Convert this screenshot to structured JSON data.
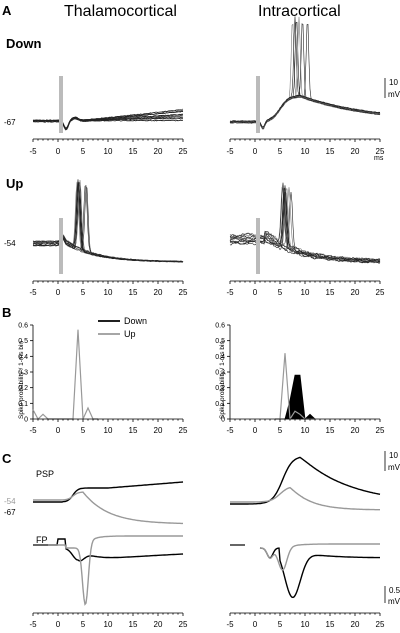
{
  "panels": {
    "A": "A",
    "B": "B",
    "C": "C"
  },
  "titles": {
    "left": "Thalamocortical",
    "right": "Intracortical"
  },
  "conditions": {
    "down": "Down",
    "up": "Up"
  },
  "x_ticks": [
    "-5",
    "0",
    "5",
    "10",
    "15",
    "20",
    "25"
  ],
  "ms_unit": "ms",
  "voltage": {
    "down": "-67",
    "up": "-54"
  },
  "scalebars": {
    "a_value": "10",
    "a_unit": "mV",
    "c_psp_value": "10",
    "c_psp_unit": "mV",
    "c_fp_value": "0.5",
    "c_fp_unit": "mV"
  },
  "c_labels": {
    "psp": "PSP",
    "fp": "FP",
    "v_up": "-54",
    "v_down": "-67"
  },
  "colors": {
    "down": "#000000",
    "up": "#999999",
    "stim": "#bbbbbb"
  },
  "chart_data": [
    {
      "type": "bar",
      "panel": "B-left",
      "ylabel": "Spike probability / 1-ms bin",
      "ylim": [
        0,
        0.6
      ],
      "yticks": [
        "0",
        "0.1",
        "0.2",
        "0.3",
        "0.4",
        "0.5",
        "0.6"
      ],
      "xlim": [
        -5,
        25
      ],
      "x": [
        -5,
        -4,
        -3,
        -2,
        -1,
        0,
        1,
        2,
        3,
        4,
        5,
        6,
        7,
        8
      ],
      "series": [
        {
          "name": "Down",
          "values": [
            0,
            0,
            0,
            0,
            0,
            0,
            0,
            0,
            0,
            0,
            0,
            0,
            0,
            0
          ]
        },
        {
          "name": "Up",
          "values": [
            0.06,
            0,
            0.03,
            0,
            0,
            0,
            0,
            0,
            0,
            0.57,
            0,
            0.07,
            0,
            0
          ]
        }
      ],
      "legend": "top-right"
    },
    {
      "type": "bar",
      "panel": "B-right",
      "ylabel": "Spike probability / 1-ms bin",
      "ylim": [
        0,
        0.6
      ],
      "yticks": [
        "0",
        "0.1",
        "0.2",
        "0.3",
        "0.4",
        "0.5",
        "0.6"
      ],
      "xlim": [
        -5,
        25
      ],
      "x": [
        4,
        5,
        6,
        7,
        8,
        9,
        10,
        11,
        12
      ],
      "series": [
        {
          "name": "Down",
          "values": [
            0,
            0,
            0,
            0.12,
            0.28,
            0.28,
            0,
            0.03,
            0
          ]
        },
        {
          "name": "Up",
          "values": [
            0,
            0,
            0.42,
            0,
            0.05,
            0.03,
            0,
            0,
            0
          ]
        }
      ]
    }
  ]
}
